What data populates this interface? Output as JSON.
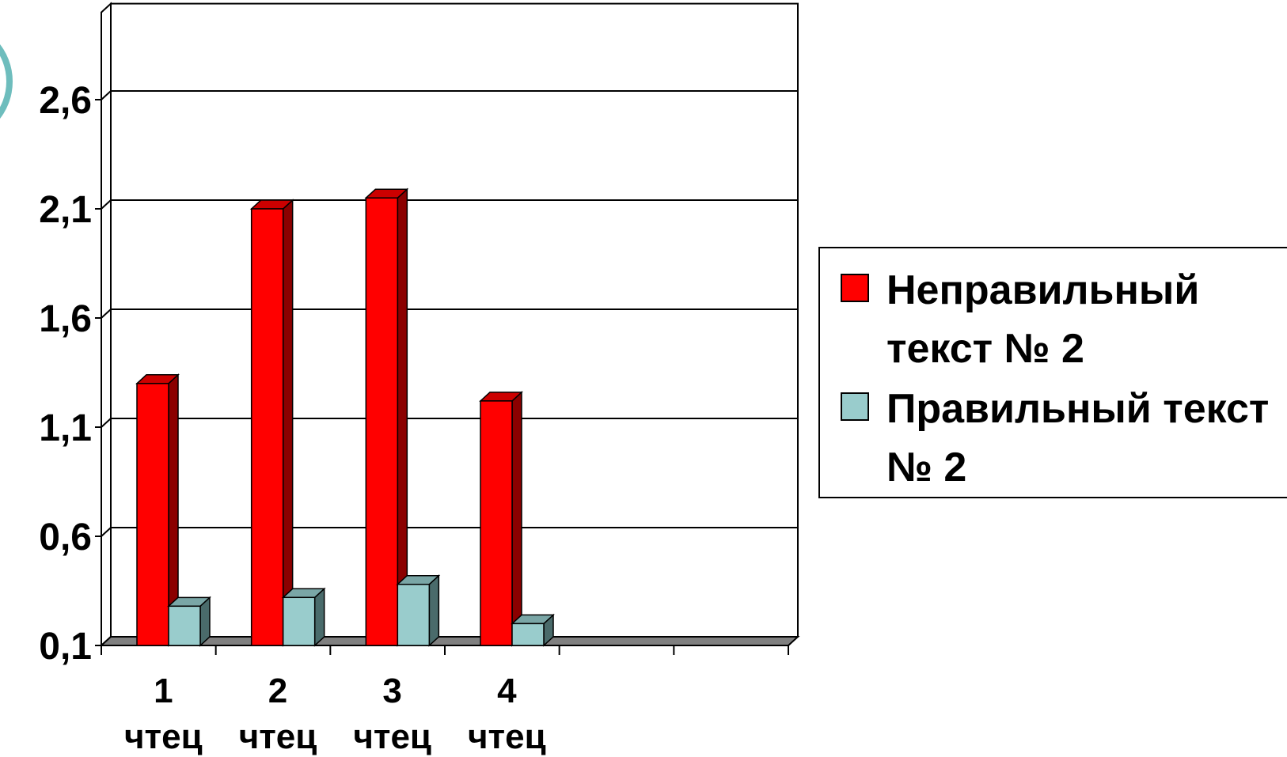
{
  "chart_data": {
    "type": "bar",
    "categories": [
      "1 чтец",
      "2 чтец",
      "3 чтец",
      "4 чтец",
      "",
      ""
    ],
    "category_lines": [
      [
        "1",
        "чтец"
      ],
      [
        "2",
        "чтец"
      ],
      [
        "3",
        "чтец"
      ],
      [
        "4",
        "чтец"
      ],
      [
        "",
        ""
      ],
      [
        "",
        ""
      ]
    ],
    "series": [
      {
        "name": "Неправильный текст № 2",
        "color": "#ff0000",
        "side_color": "#8b0000",
        "top_color": "#cc0000",
        "values": [
          1.3,
          2.1,
          2.15,
          1.22,
          null,
          null
        ]
      },
      {
        "name": "Правильный текст № 2",
        "color": "#99cccc",
        "side_color": "#4a6b6b",
        "top_color": "#7aa6a6",
        "values": [
          0.28,
          0.32,
          0.38,
          0.2,
          null,
          null
        ]
      }
    ],
    "yticks": [
      "0,1",
      "0,6",
      "1,1",
      "1,6",
      "2,1",
      "2,6"
    ],
    "ytick_values": [
      0.1,
      0.6,
      1.1,
      1.6,
      2.1,
      2.6
    ],
    "ylim": [
      0.1,
      3.0
    ],
    "grid": true,
    "legend_position": "right",
    "three_d": true
  },
  "legend": {
    "items": [
      {
        "label": "Неправильный текст № 2",
        "color": "#ff0000"
      },
      {
        "label": "Правильный текст № 2",
        "color": "#99cccc"
      }
    ]
  },
  "decoration": {
    "arc_color": "#5fb6b6"
  }
}
